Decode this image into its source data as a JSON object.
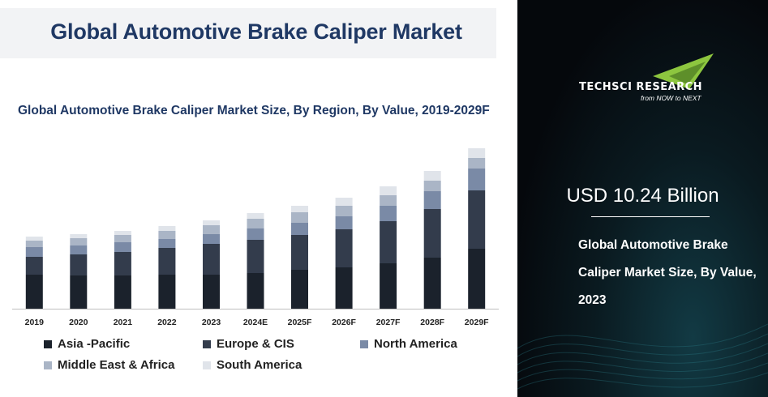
{
  "header": {
    "title": "Global Automotive Brake Caliper Market"
  },
  "chart_data": {
    "type": "bar",
    "stacked": true,
    "title": "Global Automotive Brake Caliper Market Size, By Region, By Value, 2019-2029F",
    "xlabel": "",
    "ylabel": "",
    "categories": [
      "2019",
      "2020",
      "2021",
      "2022",
      "2023",
      "2024E",
      "2025F",
      "2026F",
      "2027F",
      "2028F",
      "2029F"
    ],
    "series": [
      {
        "name": "Asia -Pacific",
        "color": "#1b222c",
        "values": [
          42,
          41,
          41,
          42,
          42,
          44,
          48,
          51,
          56,
          63,
          74
        ]
      },
      {
        "name": "Europe & CIS",
        "color": "#333c4c",
        "values": [
          22,
          26,
          29,
          33,
          38,
          41,
          43,
          47,
          52,
          60,
          72
        ]
      },
      {
        "name": "North America",
        "color": "#7a8aa6",
        "values": [
          12,
          11,
          12,
          11,
          12,
          14,
          15,
          16,
          19,
          22,
          27
        ]
      },
      {
        "name": "Middle East & Africa",
        "color": "#aab5c6",
        "values": [
          8,
          9,
          9,
          10,
          11,
          12,
          13,
          13,
          13,
          13,
          13
        ]
      },
      {
        "name": "South America",
        "color": "#e0e4ea",
        "values": [
          5,
          5,
          5,
          6,
          6,
          7,
          8,
          10,
          11,
          12,
          12
        ]
      }
    ],
    "ylim": [
      0,
      210
    ],
    "grid": false,
    "legend": "bottom"
  },
  "sidebar": {
    "logo_text": "TECHSCI RESEARCH",
    "logo_tagline": "from NOW to NEXT",
    "value": "USD 10.24 Billion",
    "description": "Global Automotive Brake Caliper Market Size, By Value, 2023"
  }
}
